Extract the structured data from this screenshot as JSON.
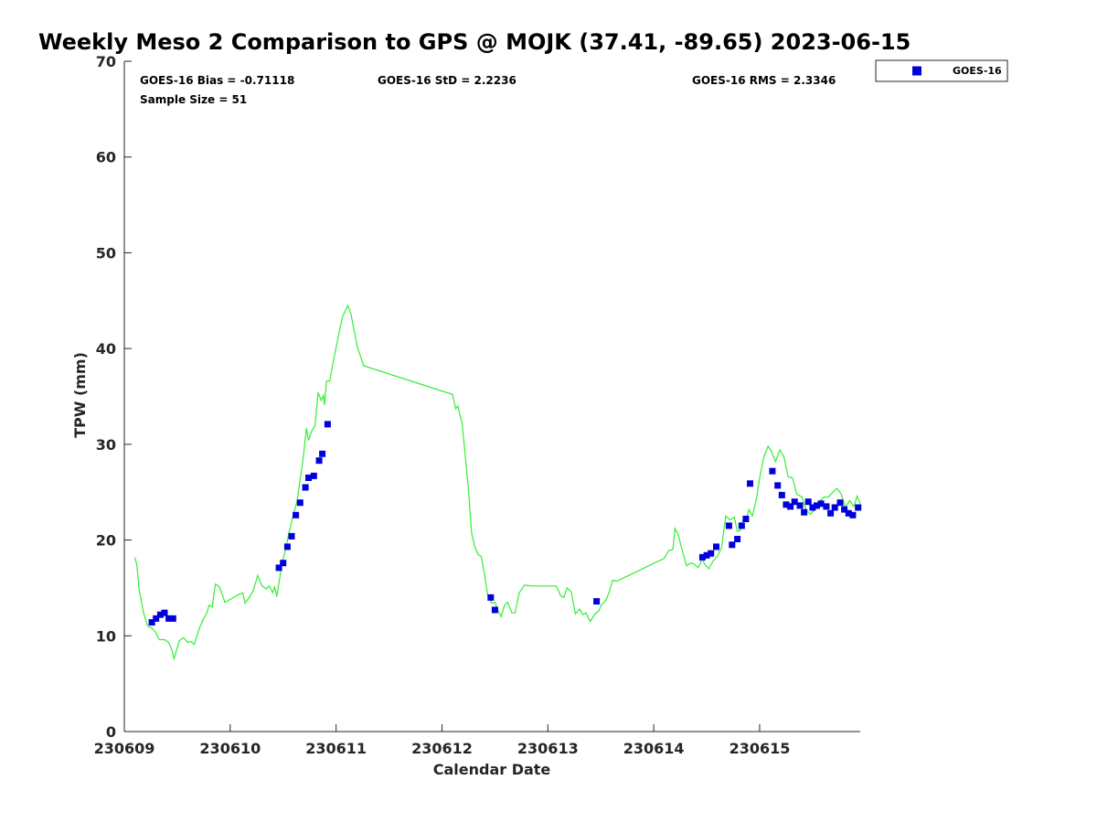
{
  "chart_data": {
    "type": "scatter",
    "title": "Weekly Meso 2 Comparison to GPS @ MOJK (37.41, -89.65) 2023-06-15",
    "xlabel": "Calendar Date",
    "ylabel": "TPW (mm)",
    "xlim": [
      230609,
      230615.95
    ],
    "ylim": [
      0,
      70
    ],
    "x_ticks": [
      230609,
      230610,
      230611,
      230612,
      230613,
      230614,
      230615
    ],
    "x_tick_labels": [
      "230609",
      "230610",
      "230611",
      "230612",
      "230613",
      "230614",
      "230615"
    ],
    "y_ticks": [
      0,
      10,
      20,
      30,
      40,
      50,
      60,
      70
    ],
    "y_tick_labels": [
      "0",
      "10",
      "20",
      "30",
      "40",
      "50",
      "60",
      "70"
    ],
    "grid": false,
    "legend_position": "top-right, outside plot",
    "stats": {
      "bias": "GOES-16 Bias = -0.71118",
      "std": "GOES-16 StD = 2.2236",
      "rms": "GOES-16 RMS = 2.3346",
      "sample": "Sample Size = 51"
    },
    "series": [
      {
        "name": "GOES-16",
        "kind": "scatter",
        "marker": "square",
        "color": "#0000dd",
        "points": [
          [
            230609.26,
            11.4
          ],
          [
            230609.3,
            11.8
          ],
          [
            230609.34,
            12.2
          ],
          [
            230609.38,
            12.4
          ],
          [
            230609.42,
            11.8
          ],
          [
            230609.46,
            11.8
          ],
          [
            230610.46,
            17.1
          ],
          [
            230610.5,
            17.6
          ],
          [
            230610.54,
            19.3
          ],
          [
            230610.58,
            20.4
          ],
          [
            230610.62,
            22.6
          ],
          [
            230610.66,
            23.9
          ],
          [
            230610.71,
            25.5
          ],
          [
            230610.74,
            26.5
          ],
          [
            230610.79,
            26.7
          ],
          [
            230610.84,
            28.3
          ],
          [
            230610.87,
            29.0
          ],
          [
            230610.92,
            32.1
          ],
          [
            230612.46,
            14.0
          ],
          [
            230612.5,
            12.7
          ],
          [
            230613.46,
            13.6
          ],
          [
            230614.46,
            18.2
          ],
          [
            230614.5,
            18.4
          ],
          [
            230614.54,
            18.6
          ],
          [
            230614.59,
            19.3
          ],
          [
            230614.71,
            21.5
          ],
          [
            230614.74,
            19.5
          ],
          [
            230614.79,
            20.1
          ],
          [
            230614.83,
            21.5
          ],
          [
            230614.87,
            22.2
          ],
          [
            230614.91,
            25.9
          ],
          [
            230615.12,
            27.2
          ],
          [
            230615.17,
            25.7
          ],
          [
            230615.21,
            24.7
          ],
          [
            230615.25,
            23.7
          ],
          [
            230615.29,
            23.5
          ],
          [
            230615.33,
            24.0
          ],
          [
            230615.38,
            23.6
          ],
          [
            230615.42,
            22.9
          ],
          [
            230615.46,
            24.0
          ],
          [
            230615.5,
            23.4
          ],
          [
            230615.54,
            23.6
          ],
          [
            230615.58,
            23.8
          ],
          [
            230615.63,
            23.5
          ],
          [
            230615.67,
            22.8
          ],
          [
            230615.71,
            23.4
          ],
          [
            230615.76,
            23.9
          ],
          [
            230615.8,
            23.2
          ],
          [
            230615.84,
            22.8
          ],
          [
            230615.88,
            22.6
          ],
          [
            230615.93,
            23.4
          ]
        ]
      },
      {
        "name": "",
        "kind": "line",
        "color": "#33ee33",
        "points": [
          [
            230609.1,
            18.2
          ],
          [
            230609.12,
            17.3
          ],
          [
            230609.14,
            14.8
          ],
          [
            230609.18,
            12.5
          ],
          [
            230609.22,
            11.0
          ],
          [
            230609.26,
            10.8
          ],
          [
            230609.3,
            10.3
          ],
          [
            230609.33,
            9.6
          ],
          [
            230609.38,
            9.6
          ],
          [
            230609.42,
            9.3
          ],
          [
            230609.45,
            8.5
          ],
          [
            230609.47,
            7.6
          ],
          [
            230609.49,
            8.4
          ],
          [
            230609.52,
            9.5
          ],
          [
            230609.56,
            9.8
          ],
          [
            230609.6,
            9.3
          ],
          [
            230609.63,
            9.4
          ],
          [
            230609.66,
            9.1
          ],
          [
            230609.7,
            10.5
          ],
          [
            230609.74,
            11.6
          ],
          [
            230609.78,
            12.4
          ],
          [
            230609.8,
            13.2
          ],
          [
            230609.83,
            13.0
          ],
          [
            230609.86,
            15.4
          ],
          [
            230609.9,
            15.1
          ],
          [
            230609.95,
            13.5
          ],
          [
            230610.0,
            13.8
          ],
          [
            230610.06,
            14.2
          ],
          [
            230610.12,
            14.5
          ],
          [
            230610.14,
            13.4
          ],
          [
            230610.18,
            14.0
          ],
          [
            230610.22,
            14.8
          ],
          [
            230610.26,
            16.3
          ],
          [
            230610.3,
            15.2
          ],
          [
            230610.34,
            14.9
          ],
          [
            230610.37,
            15.2
          ],
          [
            230610.4,
            14.5
          ],
          [
            230610.42,
            15.1
          ],
          [
            230610.44,
            14.1
          ],
          [
            230610.46,
            15.5
          ],
          [
            230610.49,
            17.6
          ],
          [
            230610.52,
            18.9
          ],
          [
            230610.55,
            20.5
          ],
          [
            230610.59,
            22.4
          ],
          [
            230610.63,
            24.0
          ],
          [
            230610.66,
            26.3
          ],
          [
            230610.69,
            28.6
          ],
          [
            230610.72,
            31.7
          ],
          [
            230610.74,
            30.4
          ],
          [
            230610.77,
            31.4
          ],
          [
            230610.8,
            31.9
          ],
          [
            230610.83,
            35.4
          ],
          [
            230610.86,
            34.6
          ],
          [
            230610.88,
            35.1
          ],
          [
            230610.89,
            34.1
          ],
          [
            230610.91,
            36.6
          ],
          [
            230610.94,
            36.6
          ],
          [
            230610.98,
            39.0
          ],
          [
            230611.02,
            41.2
          ],
          [
            230611.06,
            43.3
          ],
          [
            230611.11,
            44.5
          ],
          [
            230611.14,
            43.6
          ],
          [
            230611.2,
            40.2
          ],
          [
            230611.26,
            38.2
          ],
          [
            230612.1,
            35.2
          ],
          [
            230612.13,
            33.7
          ],
          [
            230612.15,
            34.0
          ],
          [
            230612.17,
            33.0
          ],
          [
            230612.19,
            32.2
          ],
          [
            230612.22,
            28.8
          ],
          [
            230612.25,
            25.3
          ],
          [
            230612.28,
            20.7
          ],
          [
            230612.31,
            19.3
          ],
          [
            230612.34,
            18.5
          ],
          [
            230612.37,
            18.3
          ],
          [
            230612.4,
            16.6
          ],
          [
            230612.43,
            14.3
          ],
          [
            230612.47,
            13.4
          ],
          [
            230612.5,
            13.5
          ],
          [
            230612.53,
            12.6
          ],
          [
            230612.56,
            12.0
          ],
          [
            230612.59,
            13.2
          ],
          [
            230612.62,
            13.5
          ],
          [
            230612.66,
            12.4
          ],
          [
            230612.69,
            12.4
          ],
          [
            230612.73,
            14.5
          ],
          [
            230612.78,
            15.3
          ],
          [
            230612.85,
            15.2
          ],
          [
            230612.92,
            15.2
          ],
          [
            230613.0,
            15.2
          ],
          [
            230613.08,
            15.2
          ],
          [
            230613.12,
            14.2
          ],
          [
            230613.15,
            14.0
          ],
          [
            230613.18,
            15.0
          ],
          [
            230613.22,
            14.6
          ],
          [
            230613.26,
            12.3
          ],
          [
            230613.3,
            12.8
          ],
          [
            230613.33,
            12.2
          ],
          [
            230613.36,
            12.4
          ],
          [
            230613.4,
            11.5
          ],
          [
            230613.44,
            12.2
          ],
          [
            230613.48,
            12.6
          ],
          [
            230613.51,
            13.3
          ],
          [
            230613.55,
            13.7
          ],
          [
            230613.58,
            14.6
          ],
          [
            230613.61,
            15.8
          ],
          [
            230613.65,
            15.7
          ],
          [
            230614.1,
            18.1
          ],
          [
            230614.14,
            18.9
          ],
          [
            230614.18,
            19.0
          ],
          [
            230614.2,
            21.2
          ],
          [
            230614.23,
            20.6
          ],
          [
            230614.27,
            18.9
          ],
          [
            230614.31,
            17.3
          ],
          [
            230614.35,
            17.6
          ],
          [
            230614.38,
            17.5
          ],
          [
            230614.42,
            17.1
          ],
          [
            230614.46,
            18.1
          ],
          [
            230614.48,
            17.5
          ],
          [
            230614.52,
            17.0
          ],
          [
            230614.56,
            17.8
          ],
          [
            230614.6,
            18.3
          ],
          [
            230614.64,
            19.2
          ],
          [
            230614.68,
            22.5
          ],
          [
            230614.72,
            22.1
          ],
          [
            230614.76,
            22.4
          ],
          [
            230614.79,
            20.9
          ],
          [
            230614.82,
            21.0
          ],
          [
            230614.85,
            22.4
          ],
          [
            230614.87,
            22.1
          ],
          [
            230614.9,
            23.2
          ],
          [
            230614.93,
            22.5
          ],
          [
            230614.97,
            24.3
          ],
          [
            230615.0,
            26.5
          ],
          [
            230615.04,
            28.7
          ],
          [
            230615.08,
            29.8
          ],
          [
            230615.11,
            29.3
          ],
          [
            230615.15,
            28.2
          ],
          [
            230615.19,
            29.4
          ],
          [
            230615.23,
            28.7
          ],
          [
            230615.27,
            26.6
          ],
          [
            230615.31,
            26.5
          ],
          [
            230615.35,
            24.8
          ],
          [
            230615.4,
            24.5
          ],
          [
            230615.44,
            23.1
          ],
          [
            230615.48,
            22.7
          ],
          [
            230615.52,
            23.2
          ],
          [
            230615.57,
            24.1
          ],
          [
            230615.61,
            24.5
          ],
          [
            230615.65,
            24.5
          ],
          [
            230615.69,
            25.0
          ],
          [
            230615.73,
            25.4
          ],
          [
            230615.77,
            24.8
          ],
          [
            230615.81,
            23.4
          ],
          [
            230615.85,
            24.1
          ],
          [
            230615.89,
            23.5
          ],
          [
            230615.92,
            24.6
          ],
          [
            230615.95,
            23.8
          ]
        ]
      }
    ]
  }
}
